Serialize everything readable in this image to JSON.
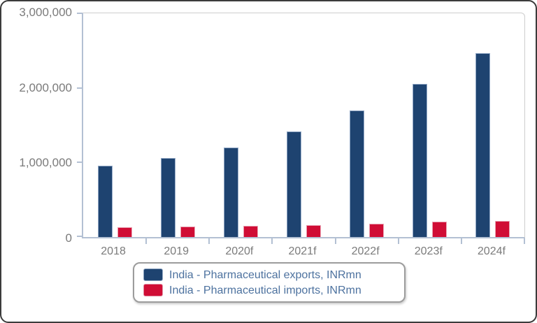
{
  "chart_data": {
    "type": "bar",
    "title": "",
    "categories": [
      "2018",
      "2019",
      "2020f",
      "2021f",
      "2022f",
      "2023f",
      "2024f"
    ],
    "series": [
      {
        "name": "India - Pharmaceutical exports, INRmn",
        "color": "#1e4370",
        "values": [
          960000,
          1060000,
          1200000,
          1420000,
          1700000,
          2050000,
          2470000
        ]
      },
      {
        "name": "India - Pharmaceutical imports, INRmn",
        "color": "#d00d35",
        "values": [
          130000,
          140000,
          150000,
          160000,
          175000,
          210000,
          220000
        ]
      }
    ],
    "xlabel": "",
    "ylabel": "",
    "ylim": [
      0,
      3000000
    ],
    "yticks": [
      0,
      1000000,
      2000000,
      3000000
    ],
    "ytick_labels": [
      "0",
      "1,000,000",
      "2,000,000",
      "3,000,000"
    ],
    "grid": false,
    "legend_position": "bottom-center",
    "colors": {
      "axis": "#b3c0d3",
      "frame": "#cdcdcd",
      "tick_label": "#7b7b7b",
      "legend_text": "#4d729f",
      "window_border": "#3b3b3b"
    }
  }
}
